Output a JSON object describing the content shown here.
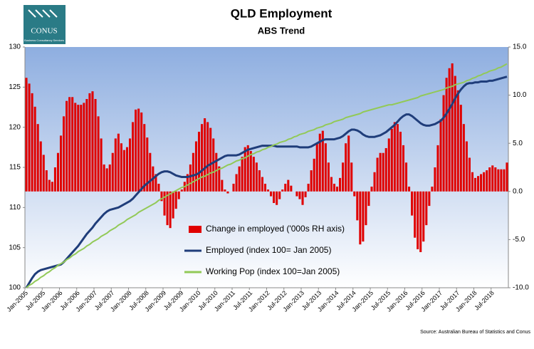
{
  "logo": {
    "name": "CONUS",
    "tagline": "Business Consultancy Services"
  },
  "chart_data": {
    "type": "combo",
    "title": "QLD Employment",
    "subtitle": "ABS Trend",
    "source": "Source: Australian Bureau of Statistics and Conus",
    "categories": [
      "Jan-2005",
      null,
      null,
      null,
      null,
      null,
      "Jul-2005",
      null,
      null,
      null,
      null,
      null,
      "Jan-2006",
      null,
      null,
      null,
      null,
      null,
      "Jul-2006",
      null,
      null,
      null,
      null,
      null,
      "Jan-2007",
      null,
      null,
      null,
      null,
      null,
      "Jul-2007",
      null,
      null,
      null,
      null,
      null,
      "Jan-2008",
      null,
      null,
      null,
      null,
      null,
      "Jul-2008",
      null,
      null,
      null,
      null,
      null,
      "Jan-2009",
      null,
      null,
      null,
      null,
      null,
      "Jul-2009",
      null,
      null,
      null,
      null,
      null,
      "Jan-2010",
      null,
      null,
      null,
      null,
      null,
      "Jul-2010",
      null,
      null,
      null,
      null,
      null,
      "Jan-2011",
      null,
      null,
      null,
      null,
      null,
      "Jul-2011",
      null,
      null,
      null,
      null,
      null,
      "Jan-2012",
      null,
      null,
      null,
      null,
      null,
      "Jul-2012",
      null,
      null,
      null,
      null,
      null,
      "Jan-2013",
      null,
      null,
      null,
      null,
      null,
      "Jul-2013",
      null,
      null,
      null,
      null,
      null,
      "Jan-2014",
      null,
      null,
      null,
      null,
      null,
      "Jul-2014",
      null,
      null,
      null,
      null,
      null,
      "Jan-2015",
      null,
      null,
      null,
      null,
      null,
      "Jul-2015",
      null,
      null,
      null,
      null,
      null,
      "Jan-2016",
      null,
      null,
      null,
      null,
      null,
      "Jul-2016",
      null,
      null,
      null,
      null,
      null,
      "Jan-2017",
      null,
      null,
      null,
      null,
      null,
      "Jul-2017",
      null,
      null,
      null,
      null,
      null,
      "Jan-2018",
      null,
      null,
      null,
      null,
      null,
      "Jul-2018",
      null,
      null,
      null,
      null,
      null
    ],
    "series": [
      {
        "name": "Change in employed ('000s RH axis)",
        "type": "bar",
        "axis": "y2",
        "color": "#e00000",
        "values": [
          11.8,
          11.2,
          10.2,
          8.8,
          7.0,
          5.2,
          3.8,
          2.2,
          1.2,
          1.0,
          2.5,
          4.0,
          5.8,
          7.8,
          9.4,
          9.8,
          9.8,
          9.2,
          9.0,
          9.0,
          9.2,
          9.6,
          10.2,
          10.4,
          9.6,
          7.8,
          5.5,
          2.8,
          2.4,
          2.8,
          4.0,
          5.5,
          6.0,
          5.0,
          4.3,
          4.6,
          5.5,
          7.2,
          8.5,
          8.6,
          8.2,
          7.0,
          5.6,
          4.0,
          2.6,
          1.8,
          0.8,
          -1.0,
          -2.5,
          -3.5,
          -3.8,
          -2.8,
          -1.8,
          -0.8,
          0.2,
          1.0,
          1.8,
          2.8,
          4.0,
          5.2,
          6.2,
          7.0,
          7.6,
          7.2,
          6.6,
          5.5,
          4.0,
          2.6,
          1.2,
          0.2,
          -0.2,
          0.0,
          0.8,
          1.8,
          2.6,
          3.6,
          4.6,
          4.8,
          4.2,
          3.6,
          3.0,
          2.2,
          1.5,
          0.8,
          0.2,
          -0.5,
          -1.2,
          -1.4,
          -0.8,
          0.2,
          0.8,
          1.2,
          0.6,
          0.0,
          -0.5,
          -0.8,
          -1.4,
          -0.6,
          0.8,
          2.2,
          3.4,
          5.0,
          6.0,
          6.3,
          5.0,
          3.0,
          1.5,
          0.8,
          0.5,
          1.4,
          3.0,
          5.0,
          5.8,
          3.0,
          -0.5,
          -3.0,
          -5.5,
          -5.2,
          -3.5,
          -1.5,
          0.5,
          2.0,
          3.5,
          4.0,
          4.0,
          4.5,
          5.5,
          6.5,
          7.2,
          7.0,
          6.2,
          4.8,
          3.0,
          0.5,
          -2.5,
          -4.8,
          -6.0,
          -6.3,
          -5.2,
          -3.5,
          -1.5,
          0.5,
          2.5,
          4.8,
          7.5,
          10.0,
          11.8,
          12.8,
          13.3,
          12.0,
          10.5,
          9.0,
          7.0,
          5.2,
          3.5,
          2.0,
          1.4,
          1.6,
          1.8,
          2.0,
          2.2,
          2.5,
          2.7,
          2.5,
          2.3,
          2.3,
          2.3,
          3.0
        ]
      },
      {
        "name": "Employed (index 100= Jan 2005)",
        "type": "line",
        "color": "#1f3d7a",
        "values": [
          100.0,
          100.6,
          101.2,
          101.7,
          102.0,
          102.2,
          102.3,
          102.4,
          102.5,
          102.6,
          102.7,
          102.8,
          102.9,
          103.2,
          103.6,
          104.0,
          104.4,
          104.8,
          105.2,
          105.7,
          106.2,
          106.7,
          107.1,
          107.5,
          108.0,
          108.4,
          108.8,
          109.2,
          109.5,
          109.7,
          109.8,
          109.9,
          110.0,
          110.2,
          110.4,
          110.6,
          110.8,
          111.1,
          111.5,
          111.9,
          112.3,
          112.7,
          113.0,
          113.3,
          113.6,
          113.9,
          114.2,
          114.4,
          114.5,
          114.5,
          114.4,
          114.2,
          114.0,
          113.9,
          113.8,
          113.8,
          113.8,
          113.9,
          114.0,
          114.1,
          114.3,
          114.6,
          114.9,
          115.2,
          115.4,
          115.6,
          115.8,
          116.0,
          116.2,
          116.4,
          116.5,
          116.5,
          116.5,
          116.5,
          116.6,
          116.8,
          117.0,
          117.2,
          117.3,
          117.4,
          117.5,
          117.6,
          117.7,
          117.7,
          117.7,
          117.7,
          117.7,
          117.6,
          117.6,
          117.6,
          117.6,
          117.6,
          117.6,
          117.6,
          117.6,
          117.5,
          117.5,
          117.5,
          117.5,
          117.6,
          117.8,
          118.0,
          118.2,
          118.4,
          118.5,
          118.5,
          118.5,
          118.5,
          118.6,
          118.7,
          118.9,
          119.2,
          119.5,
          119.7,
          119.7,
          119.6,
          119.4,
          119.1,
          118.9,
          118.8,
          118.8,
          118.8,
          118.9,
          119.0,
          119.2,
          119.4,
          119.7,
          120.0,
          120.3,
          120.7,
          121.1,
          121.4,
          121.6,
          121.6,
          121.4,
          121.1,
          120.8,
          120.5,
          120.3,
          120.2,
          120.2,
          120.3,
          120.4,
          120.6,
          120.8,
          121.2,
          121.7,
          122.3,
          122.9,
          123.6,
          124.2,
          124.7,
          125.1,
          125.4,
          125.5,
          125.5,
          125.6,
          125.6,
          125.7,
          125.7,
          125.7,
          125.8,
          125.8,
          125.9,
          126.0,
          126.1,
          126.2,
          126.3
        ]
      },
      {
        "name": "Working Pop (index 100=Jan 2005)",
        "type": "line",
        "color": "#92c957",
        "values": [
          100.0,
          100.3,
          100.5,
          100.8,
          101.0,
          101.3,
          101.5,
          101.8,
          102.0,
          102.3,
          102.5,
          102.8,
          103.0,
          103.2,
          103.5,
          103.7,
          104.0,
          104.2,
          104.5,
          104.7,
          104.9,
          105.2,
          105.4,
          105.7,
          105.9,
          106.1,
          106.4,
          106.6,
          106.8,
          107.1,
          107.3,
          107.5,
          107.8,
          108.0,
          108.2,
          108.5,
          108.7,
          108.9,
          109.1,
          109.4,
          109.6,
          109.8,
          110.0,
          110.2,
          110.4,
          110.6,
          110.9,
          111.1,
          111.3,
          111.5,
          111.7,
          111.9,
          112.1,
          112.3,
          112.5,
          112.6,
          112.8,
          113.0,
          113.2,
          113.4,
          113.6,
          113.8,
          113.9,
          114.1,
          114.3,
          114.4,
          114.6,
          114.8,
          114.9,
          115.1,
          115.3,
          115.4,
          115.6,
          115.8,
          115.9,
          116.1,
          116.2,
          116.4,
          116.6,
          116.7,
          116.9,
          117.0,
          117.2,
          117.3,
          117.5,
          117.6,
          117.8,
          117.9,
          118.1,
          118.2,
          118.3,
          118.5,
          118.6,
          118.8,
          118.9,
          119.1,
          119.2,
          119.3,
          119.5,
          119.6,
          119.7,
          119.9,
          120.0,
          120.1,
          120.3,
          120.4,
          120.5,
          120.7,
          120.8,
          120.9,
          121.0,
          121.2,
          121.3,
          121.4,
          121.5,
          121.6,
          121.7,
          121.9,
          122.0,
          122.1,
          122.2,
          122.3,
          122.4,
          122.5,
          122.6,
          122.7,
          122.8,
          122.8,
          122.9,
          123.0,
          123.1,
          123.2,
          123.3,
          123.4,
          123.5,
          123.6,
          123.7,
          123.9,
          124.0,
          124.1,
          124.2,
          124.3,
          124.4,
          124.5,
          124.6,
          124.7,
          124.9,
          125.0,
          125.1,
          125.3,
          125.4,
          125.5,
          125.6,
          125.8,
          125.9,
          126.1,
          126.2,
          126.4,
          126.5,
          126.7,
          126.8,
          127.0,
          127.1,
          127.2,
          127.4,
          127.5,
          127.7,
          127.9
        ]
      }
    ],
    "ylim": [
      100,
      130
    ],
    "yticks": [
      100,
      105,
      110,
      115,
      120,
      125,
      130
    ],
    "y2lim": [
      -10,
      15
    ],
    "y2ticks": [
      {
        "value": -10,
        "label": "-10.0"
      },
      {
        "value": -5,
        "label": "-5.0"
      },
      {
        "value": 0,
        "label": "0.0"
      },
      {
        "value": 5,
        "label": "5.0"
      },
      {
        "value": 10,
        "label": "10.0"
      },
      {
        "value": 15,
        "label": "15.0"
      }
    ],
    "grid": false,
    "legend": "left"
  }
}
